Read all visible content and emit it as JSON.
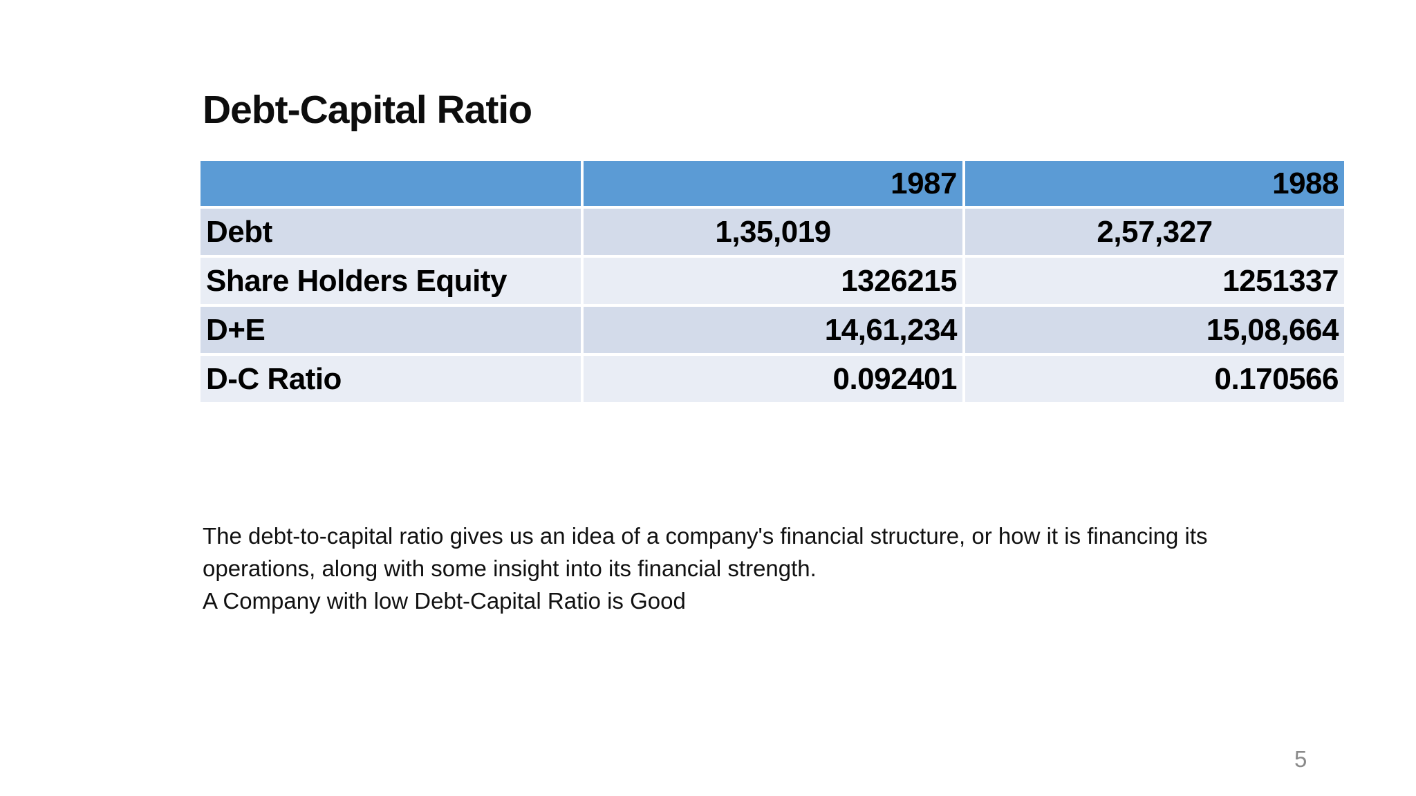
{
  "slide": {
    "title": "Debt-Capital Ratio",
    "page_number": "5"
  },
  "table": {
    "header": [
      "",
      "1987",
      "1988"
    ],
    "rows": [
      {
        "label": "Debt",
        "values": [
          "1,35,019",
          "2,57,327"
        ]
      },
      {
        "label": "Share Holders Equity",
        "values": [
          "1326215",
          "1251337"
        ]
      },
      {
        "label": "D+E",
        "values": [
          "14,61,234",
          "15,08,664"
        ]
      },
      {
        "label": "D-C Ratio",
        "values": [
          "0.092401",
          "0.170566"
        ]
      }
    ]
  },
  "body": {
    "lines": [
      "The debt-to-capital ratio gives us an idea of a company's financial structure, or how it is financing its",
      "operations, along with some insight into its financial strength.",
      "A Company with low Debt-Capital Ratio is Good"
    ]
  },
  "colors": {
    "header_blue": "#5B9BD5",
    "band_dark": "#D3DBEA",
    "band_light": "#E9EDF5",
    "text": "#000000",
    "page_number_gray": "#8A8A8A"
  }
}
